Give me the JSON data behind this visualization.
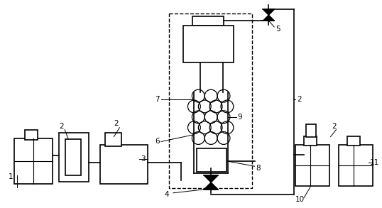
{
  "bg_color": "#ffffff",
  "lw": 1.2,
  "fig_w": 5.38,
  "fig_h": 2.93,
  "dpi": 100
}
